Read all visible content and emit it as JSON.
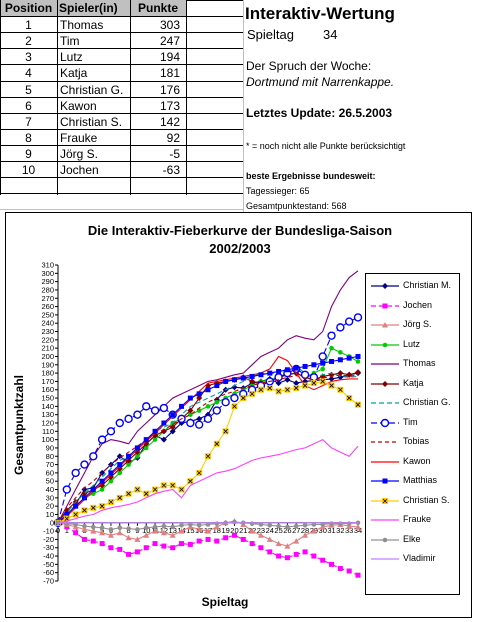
{
  "standings": {
    "headers": [
      "Position",
      "Spieler(in)",
      "Punkte"
    ],
    "rows": [
      [
        "1",
        "Thomas",
        "303"
      ],
      [
        "2",
        "Tim",
        "247"
      ],
      [
        "3",
        "Lutz",
        "194"
      ],
      [
        "4",
        "Katja",
        "181"
      ],
      [
        "5",
        "Christian G.",
        "176"
      ],
      [
        "6",
        "Kawon",
        "173"
      ],
      [
        "7",
        "Christian S.",
        "142"
      ],
      [
        "8",
        "Frauke",
        "92"
      ],
      [
        "9",
        "Jörg S.",
        "-5"
      ],
      [
        "10",
        "Jochen",
        "-63"
      ]
    ]
  },
  "info": {
    "title": "Interaktiv-Wertung",
    "spieltag_label": "Spieltag",
    "spieltag_value": "34",
    "spruch_label": "Der Spruch der Woche:",
    "spruch": "Dortmund mit Narrenkappe.",
    "update": "Letztes Update: 26.5.2003",
    "note": "* = noch nicht alle Punkte berücksichtigt",
    "best_title": "beste Ergebnisse bundesweit:",
    "best_day": "Tagessieger: 65",
    "best_total": "Gesamtpunktestand: 568"
  },
  "chart_data": {
    "type": "line",
    "title": "Die Interaktiv-Fieberkurve der Bundesliga-Saison",
    "subtitle": "2002/2003",
    "xlabel": "Spieltag",
    "ylabel": "Gesamtpunktzahl",
    "ylim": [
      -70,
      310
    ],
    "ytick_step": 10,
    "x": [
      0,
      1,
      2,
      3,
      4,
      5,
      6,
      7,
      8,
      9,
      10,
      11,
      12,
      13,
      14,
      15,
      16,
      17,
      18,
      19,
      20,
      21,
      22,
      23,
      24,
      25,
      26,
      27,
      28,
      29,
      30,
      31,
      32,
      33,
      34
    ],
    "grid": false,
    "legend": "right",
    "series": [
      {
        "name": "Christian M.",
        "color": "#000080",
        "marker": "diamond",
        "dash": "",
        "values": [
          0,
          8,
          22,
          40,
          42,
          60,
          70,
          80,
          72,
          78,
          95,
          105,
          100,
          110,
          120,
          122,
          125,
          130,
          148,
          160,
          163,
          162,
          168,
          170,
          173,
          168,
          172,
          168,
          170,
          171,
          172,
          173,
          175,
          178,
          180
        ]
      },
      {
        "name": "Jochen",
        "color": "#ff00ff",
        "marker": "square",
        "dash": "5,3",
        "values": [
          0,
          -5,
          -12,
          -20,
          -22,
          -25,
          -30,
          -32,
          -38,
          -35,
          -30,
          -25,
          -28,
          -30,
          -25,
          -26,
          -22,
          -20,
          -22,
          -18,
          -15,
          -20,
          -25,
          -30,
          -35,
          -40,
          -42,
          -38,
          -35,
          -40,
          -45,
          -50,
          -55,
          -58,
          -63
        ]
      },
      {
        "name": "Jörg S.",
        "color": "#e08080",
        "marker": "triangle",
        "dash": "",
        "values": [
          0,
          -2,
          -5,
          -8,
          -10,
          -12,
          -15,
          -12,
          -18,
          -20,
          -15,
          -10,
          -12,
          -15,
          -10,
          -5,
          -8,
          -10,
          -5,
          0,
          2,
          -2,
          -10,
          -15,
          -20,
          -25,
          -28,
          -22,
          -15,
          -10,
          -5,
          -3,
          -2,
          -4,
          -5
        ]
      },
      {
        "name": "Lutz",
        "color": "#00cc00",
        "marker": "circle",
        "dash": "",
        "values": [
          0,
          10,
          20,
          30,
          35,
          40,
          50,
          60,
          70,
          80,
          90,
          100,
          110,
          120,
          125,
          130,
          135,
          140,
          145,
          150,
          155,
          160,
          165,
          170,
          172,
          175,
          178,
          180,
          175,
          180,
          185,
          210,
          205,
          200,
          194
        ]
      },
      {
        "name": "Thomas",
        "color": "#800080",
        "marker": "none",
        "dash": "",
        "values": [
          0,
          20,
          40,
          60,
          80,
          95,
          100,
          98,
          95,
          110,
          120,
          130,
          140,
          150,
          155,
          160,
          165,
          170,
          172,
          175,
          178,
          180,
          190,
          200,
          205,
          210,
          220,
          225,
          222,
          220,
          230,
          260,
          280,
          295,
          303
        ]
      },
      {
        "name": "Katja",
        "color": "#800000",
        "marker": "diamond",
        "dash": "",
        "values": [
          0,
          15,
          25,
          35,
          40,
          45,
          55,
          65,
          75,
          85,
          95,
          105,
          110,
          115,
          125,
          135,
          150,
          165,
          168,
          170,
          172,
          175,
          170,
          168,
          170,
          175,
          178,
          180,
          175,
          172,
          176,
          178,
          180,
          178,
          181
        ]
      },
      {
        "name": "Christian G.",
        "color": "#00a0a0",
        "marker": "none",
        "dash": "5,3",
        "values": [
          0,
          12,
          25,
          35,
          45,
          55,
          65,
          75,
          80,
          90,
          100,
          110,
          115,
          120,
          130,
          140,
          145,
          150,
          155,
          160,
          165,
          170,
          175,
          180,
          178,
          182,
          185,
          188,
          180,
          175,
          178,
          180,
          176,
          175,
          176
        ]
      },
      {
        "name": "Tim",
        "color": "#0000ff",
        "marker": "ocircle",
        "dash": "6,3",
        "values": [
          0,
          40,
          60,
          70,
          80,
          100,
          110,
          120,
          125,
          130,
          140,
          135,
          138,
          130,
          125,
          120,
          118,
          125,
          135,
          145,
          150,
          155,
          160,
          165,
          170,
          175,
          180,
          185,
          178,
          175,
          200,
          225,
          235,
          242,
          247
        ]
      },
      {
        "name": "Tobias",
        "color": "#c00000",
        "marker": "none",
        "dash": "4,3",
        "values": [
          0,
          18,
          30,
          42,
          50,
          60,
          70,
          78,
          85,
          92,
          100,
          108,
          112,
          118,
          125,
          130,
          138,
          145,
          150,
          155,
          158,
          162,
          165,
          168,
          170,
          172,
          175,
          177,
          174,
          172,
          174,
          176,
          178,
          176,
          178
        ]
      },
      {
        "name": "Kawon",
        "color": "#ff0000",
        "marker": "none",
        "dash": "",
        "values": [
          0,
          8,
          18,
          28,
          38,
          48,
          58,
          68,
          78,
          88,
          98,
          108,
          118,
          128,
          138,
          148,
          158,
          168,
          170,
          172,
          174,
          176,
          178,
          180,
          185,
          200,
          195,
          180,
          165,
          160,
          165,
          170,
          172,
          173,
          173
        ]
      },
      {
        "name": "Matthias",
        "color": "#0000ff",
        "marker": "square",
        "dash": "",
        "values": [
          0,
          10,
          20,
          30,
          40,
          50,
          60,
          70,
          80,
          90,
          100,
          110,
          120,
          130,
          140,
          150,
          155,
          160,
          165,
          170,
          172,
          174,
          176,
          178,
          180,
          182,
          184,
          186,
          188,
          190,
          192,
          194,
          196,
          198,
          200
        ]
      },
      {
        "name": "Christian S.",
        "color": "#ffcc00",
        "marker": "xsquare",
        "dash": "",
        "values": [
          0,
          5,
          10,
          15,
          18,
          20,
          25,
          30,
          35,
          40,
          35,
          40,
          45,
          45,
          40,
          50,
          60,
          80,
          95,
          110,
          140,
          150,
          155,
          160,
          162,
          158,
          160,
          162,
          165,
          168,
          170,
          165,
          160,
          150,
          142
        ]
      },
      {
        "name": "Frauke",
        "color": "#ff40ff",
        "marker": "none",
        "dash": "",
        "values": [
          0,
          2,
          5,
          8,
          10,
          15,
          18,
          20,
          22,
          25,
          30,
          35,
          38,
          40,
          30,
          45,
          50,
          55,
          60,
          62,
          65,
          70,
          75,
          78,
          80,
          82,
          85,
          88,
          90,
          95,
          100,
          90,
          85,
          80,
          92
        ]
      },
      {
        "name": "Elke",
        "color": "#909090",
        "marker": "circle",
        "dash": "",
        "values": [
          0,
          -1,
          -2,
          -4,
          -5,
          -6,
          -8,
          -6,
          -7,
          -8,
          -6,
          -5,
          -4,
          -5,
          -3,
          -2,
          -3,
          -2,
          -1,
          0,
          1,
          0,
          -1,
          -2,
          -3,
          -4,
          -5,
          -4,
          -3,
          -2,
          -2,
          -1,
          -1,
          -1,
          0
        ]
      },
      {
        "name": "Vladimir",
        "color": "#c080ff",
        "marker": "none",
        "dash": "",
        "values": [
          0,
          0,
          0,
          0,
          0,
          0,
          0,
          0,
          0,
          0,
          0,
          0,
          0,
          0,
          0,
          0,
          0,
          0,
          0,
          0,
          0,
          0,
          0,
          0,
          0,
          0,
          0,
          0,
          0,
          0,
          0,
          0,
          0,
          0,
          0
        ]
      }
    ]
  }
}
